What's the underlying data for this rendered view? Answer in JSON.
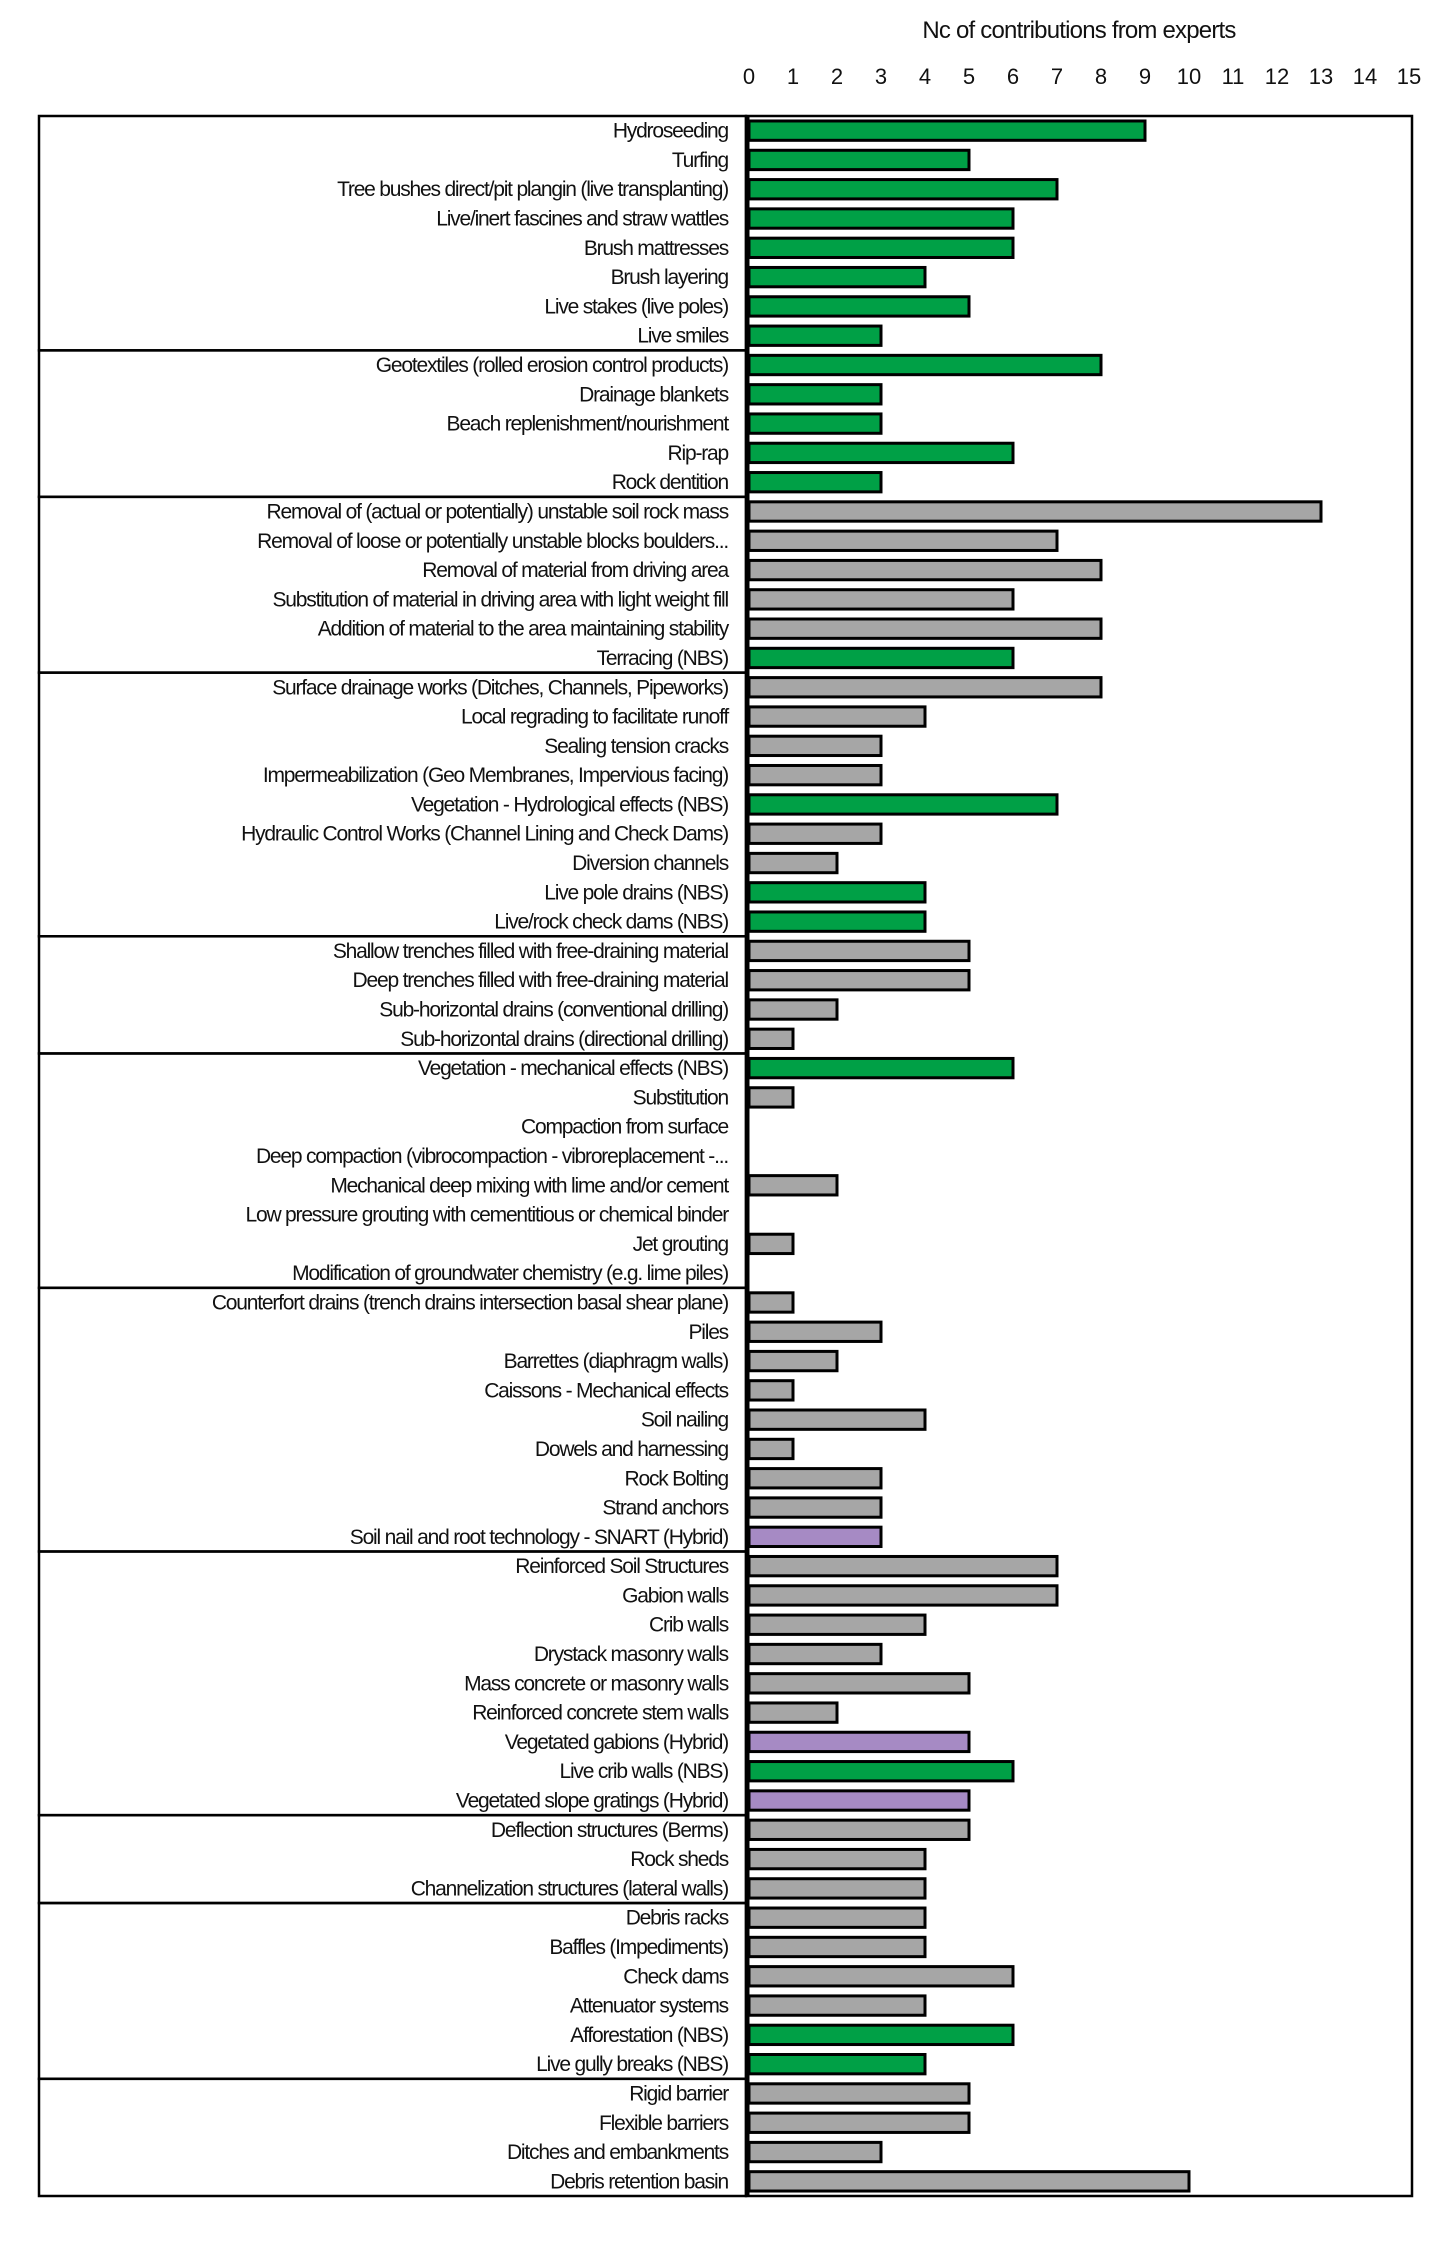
{
  "chart_data": {
    "type": "bar",
    "orientation": "horizontal",
    "title": "",
    "xlabel": "Nc of contributions from experts",
    "ylabel": "",
    "xlim": [
      0,
      15
    ],
    "xticks": [
      "0",
      "1",
      "2",
      "3",
      "4",
      "5",
      "6",
      "7",
      "8",
      "9",
      "10",
      "11",
      "12",
      "13",
      "14",
      "15"
    ],
    "axis_position": "top",
    "grid": false,
    "legend": null,
    "colors": {
      "nbs": "#00a046",
      "grey": "#a6a6a6",
      "hybrid": "#a68ac4",
      "outline": "#000000"
    },
    "groups": [
      {
        "items": [
          {
            "label": "Hydroseeding",
            "value": 9,
            "kind": "nbs"
          },
          {
            "label": "Turfing",
            "value": 5,
            "kind": "nbs"
          },
          {
            "label": "Tree bushes direct/pit plangin (live transplanting)",
            "value": 7,
            "kind": "nbs"
          },
          {
            "label": "Live/inert fascines and straw wattles",
            "value": 6,
            "kind": "nbs"
          },
          {
            "label": "Brush mattresses",
            "value": 6,
            "kind": "nbs"
          },
          {
            "label": "Brush layering",
            "value": 4,
            "kind": "nbs"
          },
          {
            "label": "Live stakes (live poles)",
            "value": 5,
            "kind": "nbs"
          },
          {
            "label": "Live smiles",
            "value": 3,
            "kind": "nbs"
          }
        ]
      },
      {
        "items": [
          {
            "label": "Geotextiles (rolled erosion control products)",
            "value": 8,
            "kind": "nbs"
          },
          {
            "label": "Drainage blankets",
            "value": 3,
            "kind": "nbs"
          },
          {
            "label": "Beach replenishment/nourishment",
            "value": 3,
            "kind": "nbs"
          },
          {
            "label": "Rip-rap",
            "value": 6,
            "kind": "nbs"
          },
          {
            "label": "Rock dentition",
            "value": 3,
            "kind": "nbs"
          }
        ]
      },
      {
        "items": [
          {
            "label": "Removal of (actual or potentially) unstable soil rock mass",
            "value": 13,
            "kind": "grey"
          },
          {
            "label": "Removal of loose or potentially unstable blocks boulders...",
            "value": 7,
            "kind": "grey"
          },
          {
            "label": "Removal of material from driving area",
            "value": 8,
            "kind": "grey"
          },
          {
            "label": "Substitution of material in driving area with light weight fill",
            "value": 6,
            "kind": "grey"
          },
          {
            "label": "Addition of material to the area maintaining stability",
            "value": 8,
            "kind": "grey"
          },
          {
            "label": "Terracing (NBS)",
            "value": 6,
            "kind": "nbs"
          }
        ]
      },
      {
        "items": [
          {
            "label": "Surface drainage works (Ditches, Channels, Pipeworks)",
            "value": 8,
            "kind": "grey"
          },
          {
            "label": "Local regrading to facilitate runoff",
            "value": 4,
            "kind": "grey"
          },
          {
            "label": "Sealing tension cracks",
            "value": 3,
            "kind": "grey"
          },
          {
            "label": "Impermeabilization (Geo Membranes, Impervious facing)",
            "value": 3,
            "kind": "grey"
          },
          {
            "label": "Vegetation - Hydrological effects (NBS)",
            "value": 7,
            "kind": "nbs"
          },
          {
            "label": "Hydraulic Control Works (Channel Lining and Check Dams)",
            "value": 3,
            "kind": "grey"
          },
          {
            "label": "Diversion channels",
            "value": 2,
            "kind": "grey"
          },
          {
            "label": "Live pole drains (NBS)",
            "value": 4,
            "kind": "nbs"
          },
          {
            "label": "Live/rock check dams (NBS)",
            "value": 4,
            "kind": "nbs"
          }
        ]
      },
      {
        "items": [
          {
            "label": "Shallow trenches filled with free-draining material",
            "value": 5,
            "kind": "grey"
          },
          {
            "label": "Deep trenches filled with free-draining material",
            "value": 5,
            "kind": "grey"
          },
          {
            "label": "Sub-horizontal drains (conventional drilling)",
            "value": 2,
            "kind": "grey"
          },
          {
            "label": "Sub-horizontal drains (directional drilling)",
            "value": 1,
            "kind": "grey"
          }
        ]
      },
      {
        "items": [
          {
            "label": "Vegetation - mechanical effects (NBS)",
            "value": 6,
            "kind": "nbs"
          },
          {
            "label": "Substitution",
            "value": 1,
            "kind": "grey"
          },
          {
            "label": "Compaction from surface",
            "value": 0,
            "kind": "grey"
          },
          {
            "label": "Deep compaction (vibrocompaction - vibroreplacement -...",
            "value": 0,
            "kind": "grey"
          },
          {
            "label": "Mechanical deep mixing with lime and/or cement",
            "value": 2,
            "kind": "grey"
          },
          {
            "label": "Low pressure grouting with cementitious or chemical binder",
            "value": 0,
            "kind": "grey"
          },
          {
            "label": "Jet grouting",
            "value": 1,
            "kind": "grey"
          },
          {
            "label": "Modification of groundwater chemistry (e.g. lime piles)",
            "value": 0,
            "kind": "grey"
          }
        ]
      },
      {
        "items": [
          {
            "label": "Counterfort drains (trench drains intersection basal shear plane)",
            "value": 1,
            "kind": "grey"
          },
          {
            "label": "Piles",
            "value": 3,
            "kind": "grey"
          },
          {
            "label": "Barrettes (diaphragm walls)",
            "value": 2,
            "kind": "grey"
          },
          {
            "label": "Caissons - Mechanical effects",
            "value": 1,
            "kind": "grey"
          },
          {
            "label": "Soil nailing",
            "value": 4,
            "kind": "grey"
          },
          {
            "label": "Dowels and harnessing",
            "value": 1,
            "kind": "grey"
          },
          {
            "label": "Rock Bolting",
            "value": 3,
            "kind": "grey"
          },
          {
            "label": "Strand anchors",
            "value": 3,
            "kind": "grey"
          },
          {
            "label": "Soil nail and root technology - SNART (Hybrid)",
            "value": 3,
            "kind": "hybrid"
          }
        ]
      },
      {
        "items": [
          {
            "label": "Reinforced Soil Structures",
            "value": 7,
            "kind": "grey"
          },
          {
            "label": "Gabion walls",
            "value": 7,
            "kind": "grey"
          },
          {
            "label": "Crib walls",
            "value": 4,
            "kind": "grey"
          },
          {
            "label": "Drystack masonry walls",
            "value": 3,
            "kind": "grey"
          },
          {
            "label": "Mass concrete or masonry walls",
            "value": 5,
            "kind": "grey"
          },
          {
            "label": "Reinforced concrete stem walls",
            "value": 2,
            "kind": "grey"
          },
          {
            "label": "Vegetated gabions (Hybrid)",
            "value": 5,
            "kind": "hybrid"
          },
          {
            "label": "Live crib walls (NBS)",
            "value": 6,
            "kind": "nbs"
          },
          {
            "label": "Vegetated slope gratings (Hybrid)",
            "value": 5,
            "kind": "hybrid"
          }
        ]
      },
      {
        "items": [
          {
            "label": "Deflection structures (Berms)",
            "value": 5,
            "kind": "grey"
          },
          {
            "label": "Rock sheds",
            "value": 4,
            "kind": "grey"
          },
          {
            "label": "Channelization structures (lateral walls)",
            "value": 4,
            "kind": "grey"
          }
        ]
      },
      {
        "items": [
          {
            "label": "Debris racks",
            "value": 4,
            "kind": "grey"
          },
          {
            "label": "Baffles (Impediments)",
            "value": 4,
            "kind": "grey"
          },
          {
            "label": "Check dams",
            "value": 6,
            "kind": "grey"
          },
          {
            "label": "Attenuator systems",
            "value": 4,
            "kind": "grey"
          },
          {
            "label": "Afforestation (NBS)",
            "value": 6,
            "kind": "nbs"
          },
          {
            "label": "Live gully breaks (NBS)",
            "value": 4,
            "kind": "nbs"
          }
        ]
      },
      {
        "items": [
          {
            "label": "Rigid barrier",
            "value": 5,
            "kind": "grey"
          },
          {
            "label": "Flexible barriers",
            "value": 5,
            "kind": "grey"
          },
          {
            "label": "Ditches and embankments",
            "value": 3,
            "kind": "grey"
          },
          {
            "label": "Debris retention basin",
            "value": 10,
            "kind": "grey"
          }
        ]
      }
    ]
  }
}
